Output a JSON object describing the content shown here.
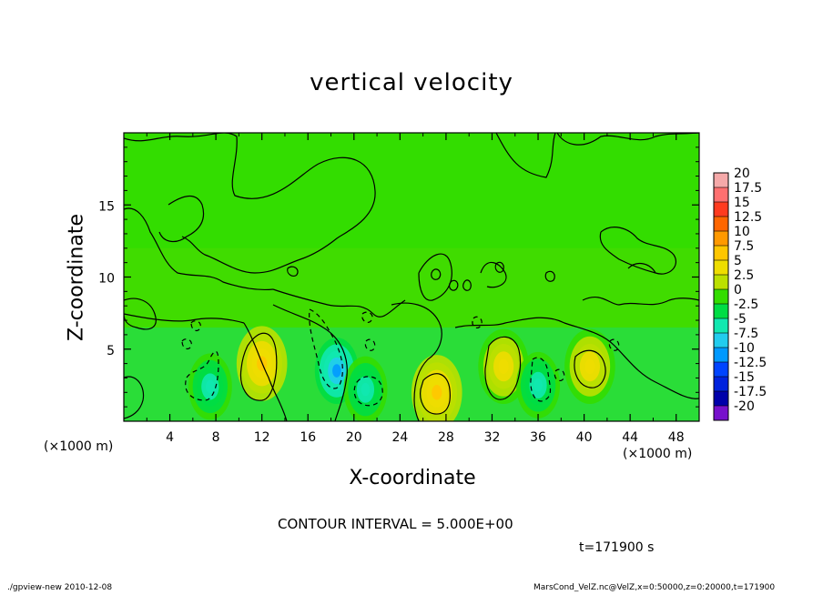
{
  "chart_data": {
    "type": "heatmap",
    "title": "vertical velocity",
    "xlabel": "X-coordinate",
    "ylabel": "Z-coordinate",
    "x_unit_label": "(×1000 m)",
    "y_unit_label": "(×1000 m)",
    "xlim": [
      0,
      50
    ],
    "ylim": [
      0,
      20
    ],
    "x_ticks": [
      4,
      8,
      12,
      16,
      20,
      24,
      28,
      32,
      36,
      40,
      44,
      48
    ],
    "y_ticks": [
      5,
      10,
      15
    ],
    "colorbar": {
      "labels": [
        "20",
        "17.5",
        "15",
        "12.5",
        "10",
        "7.5",
        "5",
        "2.5",
        "0",
        "-2.5",
        "-5",
        "-7.5",
        "-10",
        "-12.5",
        "-15",
        "-17.5",
        "-20"
      ],
      "colors": [
        "#f5a9a9",
        "#ff7070",
        "#ff3b1f",
        "#ff6600",
        "#ff9900",
        "#ffc600",
        "#eedd00",
        "#bbe000",
        "#33dd00",
        "#00dd44",
        "#11e8b0",
        "#22ccee",
        "#0099ff",
        "#0044ff",
        "#0022dd",
        "#0000aa",
        "#7711cc"
      ]
    },
    "features": [
      {
        "type": "updraft",
        "x": 12.0,
        "z": 4.0,
        "max": 7.5
      },
      {
        "type": "updraft",
        "x": 27.2,
        "z": 2.0,
        "max": 7.5
      },
      {
        "type": "updraft",
        "x": 33.0,
        "z": 3.8,
        "max": 5
      },
      {
        "type": "updraft",
        "x": 40.5,
        "z": 3.8,
        "max": 5
      },
      {
        "type": "downdraft",
        "x": 7.5,
        "z": 2.4,
        "min": -5
      },
      {
        "type": "downdraft",
        "x": 18.5,
        "z": 3.5,
        "min": -10
      },
      {
        "type": "downdraft",
        "x": 21.0,
        "z": 2.2,
        "min": -5
      },
      {
        "type": "downdraft",
        "x": 36.0,
        "z": 2.5,
        "min": -5
      }
    ],
    "contour_interval": "CONTOUR INTERVAL = 5.000E+00"
  },
  "time_label": "t=171900 s",
  "footer": {
    "left": "./gpview-new  2010-12-08",
    "right": "MarsCond_VelZ.nc@VelZ,x=0:50000,z=0:20000,t=171900"
  }
}
